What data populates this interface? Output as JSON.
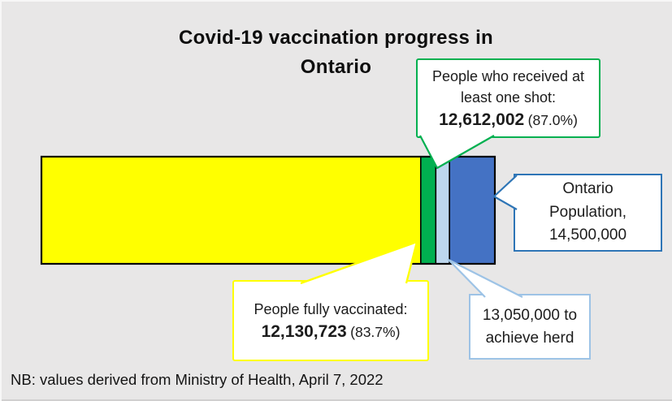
{
  "title": "Covid-19 vaccination progress in\nOntario",
  "note": "NB: values derived from Ministry of Health, April 7, 2022",
  "colors": {
    "background": "#E8E7E7",
    "bar_outline": "#000000",
    "fully_vaccinated": "#FFFF00",
    "one_shot": "#00B050",
    "herd_gap": "#BDD7EE",
    "population_remainder": "#4472C4"
  },
  "chart_data": {
    "type": "bar",
    "title": "Covid-19 vaccination progress in Ontario",
    "orientation": "horizontal",
    "stacked": true,
    "axes": "none",
    "gridlines": false,
    "legend": "none (annotated with callout labels)",
    "unit": "people",
    "total_population": 14500000,
    "milestones": [
      {
        "key": "fully-vaccinated",
        "label": "People fully vaccinated",
        "cumulative_value": 12130723,
        "percent_shown": "83.7%",
        "color": "#FFFF00"
      },
      {
        "key": "one-shot",
        "label": "People who received at least one shot",
        "cumulative_value": 12612002,
        "percent_shown": "87.0%",
        "color": "#00B050"
      },
      {
        "key": "herd-target",
        "label": "To achieve herd",
        "cumulative_value": 13050000,
        "color": "#BDD7EE"
      },
      {
        "key": "population",
        "label": "Ontario Population",
        "cumulative_value": 14500000,
        "color": "#4472C4"
      }
    ]
  },
  "callouts": {
    "one_shot": {
      "label": "People who received at least one shot:",
      "value": "12,612,002",
      "pct": "(87.0%)",
      "border_color": "#00B050"
    },
    "fully": {
      "label": "People fully vaccinated:",
      "value": "12,130,723",
      "pct": "(83.7%)",
      "border_color": "#FFFF00"
    },
    "population": {
      "text": "Ontario Population, 14,500,000",
      "border_color": "#2E75B6"
    },
    "herd": {
      "text": "13,050,000 to achieve herd",
      "border_color": "#9DC3E6"
    }
  }
}
